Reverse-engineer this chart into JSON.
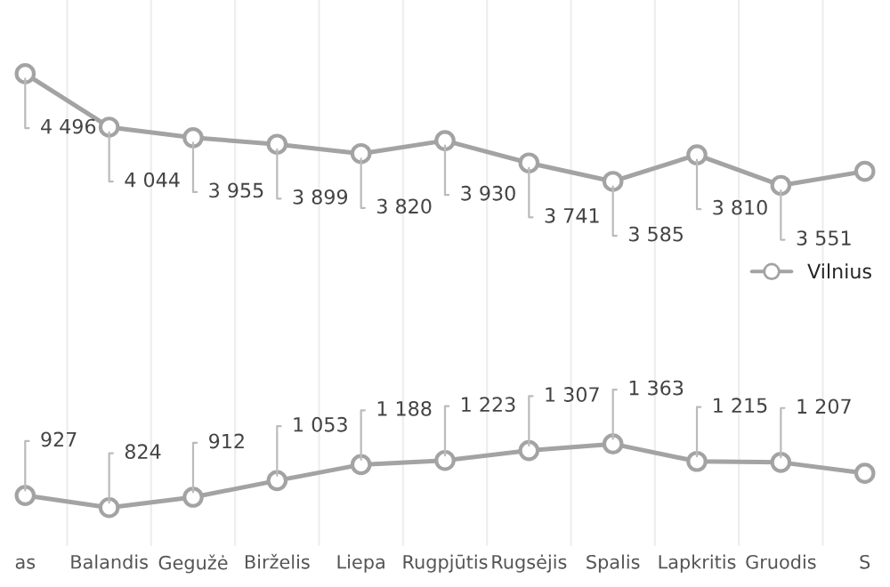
{
  "chart_data": {
    "type": "line",
    "categories": [
      "as",
      "Balandis",
      "Gegužė",
      "Birželis",
      "Liepa",
      "Rugpjūtis",
      "Rugsėjis",
      "Spalis",
      "Lapkritis",
      "Gruodis",
      "S"
    ],
    "series": [
      {
        "color": "#a3a3a3",
        "values": [
          4496,
          4044,
          3955,
          3899,
          3820,
          3930,
          3741,
          3585,
          3810,
          3551,
          3670
        ],
        "value_labels": [
          "4 496",
          "4 044",
          "3 955",
          "3 899",
          "3 820",
          "3 930",
          "3 741",
          "3 585",
          "3 810",
          "3 551",
          null
        ]
      },
      {
        "name": "Vilnius",
        "color": "#a3a3a3",
        "values": [
          927,
          824,
          912,
          1053,
          1188,
          1223,
          1307,
          1363,
          1215,
          1207,
          1115
        ],
        "value_labels": [
          "927",
          "824",
          "912",
          "1 053",
          "1 188",
          "1 223",
          "1 307",
          "1 363",
          "1 215",
          "1 207",
          null
        ]
      }
    ],
    "ylim": [
      500,
      5120
    ],
    "tick_labels": "x",
    "grid": "x",
    "legend": "right",
    "marker": "circle",
    "line_style": "solid"
  }
}
